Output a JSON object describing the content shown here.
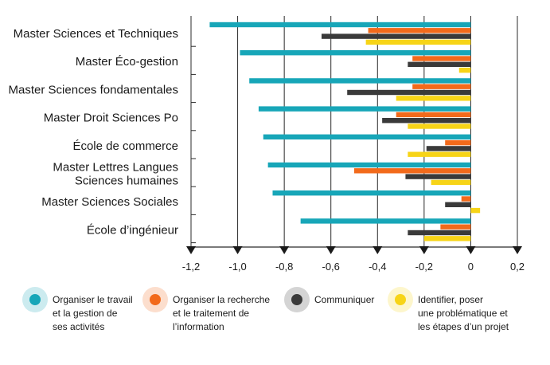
{
  "chart_data": {
    "type": "bar",
    "orientation": "horizontal",
    "categories": [
      [
        "Master Sciences et Techniques"
      ],
      [
        "Master Éco-gestion"
      ],
      [
        "Master Sciences fondamentales"
      ],
      [
        "Master Droit Sciences Po"
      ],
      [
        "École de commerce"
      ],
      [
        "Master Lettres Langues",
        "Sciences humaines"
      ],
      [
        "Master Sciences Sociales"
      ],
      [
        "École d’ingénieur"
      ]
    ],
    "series": [
      {
        "name": [
          "Organiser le travail",
          "et la gestion de",
          "ses activités"
        ],
        "color": "#17a6b8",
        "values": [
          -1.12,
          -0.99,
          -0.95,
          -0.91,
          -0.89,
          -0.87,
          -0.85,
          -0.73
        ]
      },
      {
        "name": [
          "Organiser la recherche",
          "et le traitement de",
          "l’information"
        ],
        "color": "#f26a1b",
        "values": [
          -0.44,
          -0.25,
          -0.25,
          -0.32,
          -0.11,
          -0.5,
          -0.04,
          -0.13
        ]
      },
      {
        "name": [
          "Communiquer"
        ],
        "color": "#3a3a3a",
        "values": [
          -0.64,
          -0.27,
          -0.53,
          -0.38,
          -0.19,
          -0.28,
          -0.11,
          -0.27
        ]
      },
      {
        "name": [
          "Identifier, poser",
          "une problématique et",
          "les étapes d’un projet"
        ],
        "color": "#f7d417",
        "values": [
          -0.45,
          -0.05,
          -0.32,
          -0.27,
          -0.27,
          -0.17,
          0.04,
          -0.2
        ]
      }
    ],
    "xlim": [
      -1.2,
      0.2
    ],
    "xticks": [
      -1.2,
      -1.0,
      -0.8,
      -0.6,
      -0.4,
      -0.2,
      0,
      0.2
    ],
    "xtick_labels": [
      "-1,2",
      "-1,0",
      "-0,8",
      "-0,6",
      "-0,4",
      "-0,2",
      "0",
      "0,2"
    ],
    "grid": "vertical",
    "legend_position": "bottom",
    "title": "",
    "xlabel": "",
    "ylabel": ""
  }
}
